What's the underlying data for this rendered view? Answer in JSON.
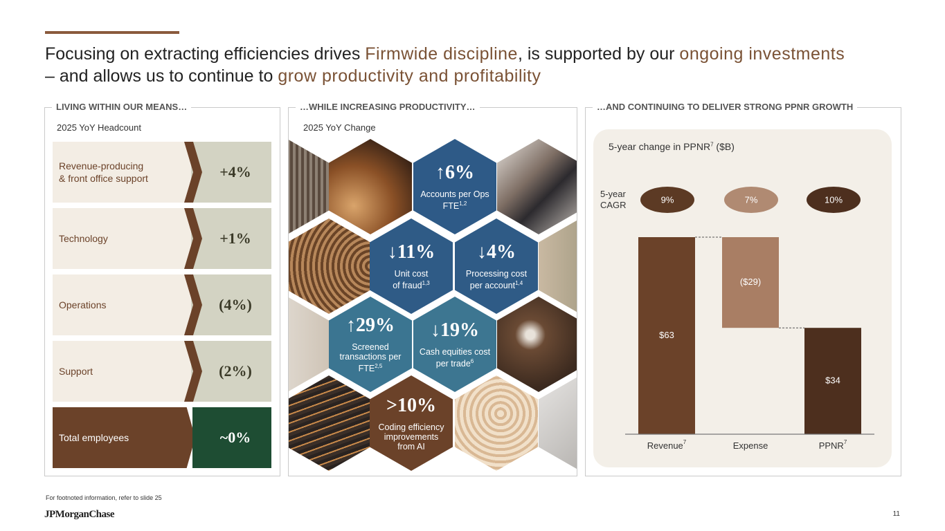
{
  "header": {
    "title": [
      "Focusing on extracting efficiencies drives ",
      "Firmwide discipline",
      ", is supported by our ",
      "ongoing investments",
      " – and allows us to continue to ",
      "grow productivity and profitability"
    ]
  },
  "headcount": {
    "heading": "LIVING WITHIN OUR MEANS…",
    "subtitle": "2025 YoY Headcount",
    "rows": [
      {
        "label": "Revenue-producing\n& front office support",
        "value": "+4%"
      },
      {
        "label": "Technology",
        "value": "+1%"
      },
      {
        "label": "Operations",
        "value": "(4%)"
      },
      {
        "label": "Support",
        "value": "(2%)"
      },
      {
        "label": "Total employees",
        "value": "~0%"
      }
    ]
  },
  "productivity": {
    "heading": "…WHILE INCREASING PRODUCTIVITY…",
    "subtitle": "2025 YoY Change",
    "metrics": [
      {
        "arrow": "↑",
        "value": "6%",
        "label": "Accounts per Ops\nFTE",
        "note": "1,2"
      },
      {
        "arrow": "↓",
        "value": "11%",
        "label": "Unit cost\nof fraud",
        "note": "1,3"
      },
      {
        "arrow": "↓",
        "value": "4%",
        "label": "Processing cost\nper account",
        "note": "1,4"
      },
      {
        "arrow": "↑",
        "value": "29%",
        "label": "Screened\ntransactions per\nFTE",
        "note": "2,5"
      },
      {
        "arrow": "↓",
        "value": "19%",
        "label": "Cash equities cost\nper trade",
        "note": "6"
      },
      {
        "value": ">10%",
        "label": "Coding efficiency\nimprovements\nfrom AI"
      }
    ]
  },
  "growth": {
    "heading": "…AND CONTINUING TO DELIVER STRONG PPNR GROWTH"
  },
  "chart_data": {
    "type": "waterfall",
    "title": "5-year change in PPNR",
    "title_note": "7",
    "title_unit": "($B)",
    "categories": [
      "Revenue",
      "Expense",
      "PPNR"
    ],
    "category_notes": [
      "7",
      null,
      "7"
    ],
    "values": [
      63,
      -29,
      34
    ],
    "value_labels": [
      "$63",
      "($29)",
      "$34"
    ],
    "measure": [
      "absolute",
      "relative",
      "total"
    ],
    "colors": [
      "#6b4229",
      "#a97e64",
      "#4d2f1e"
    ],
    "cagr_label": "5-year CAGR",
    "cagr_labels": [
      "9%",
      "7%",
      "10%"
    ],
    "cagr_colors": [
      "#5c3a24",
      "#b08a72",
      "#4d2f1e"
    ]
  },
  "footer": {
    "note": "For footnoted information, refer to slide 25",
    "logo": "JPMorganChase",
    "page": "11"
  }
}
